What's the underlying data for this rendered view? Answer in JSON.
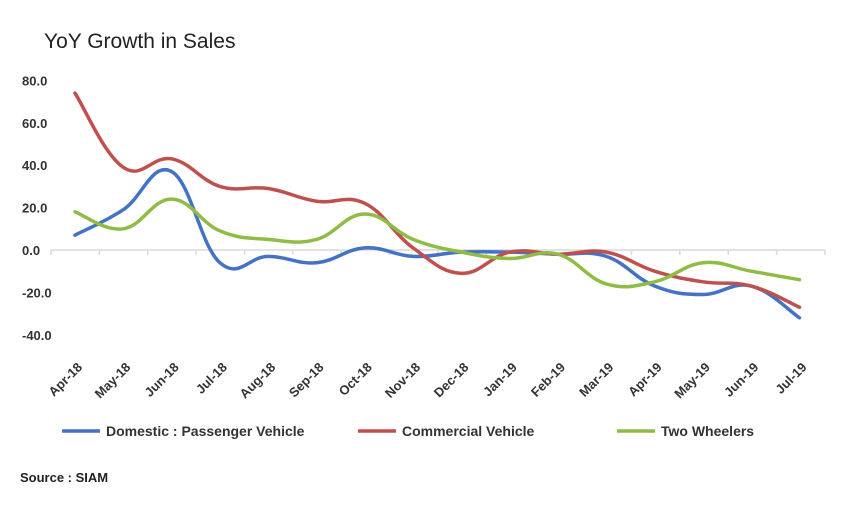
{
  "chart_data": {
    "type": "line",
    "title": "YoY Growth  in Sales",
    "xlabel": "",
    "ylabel": "",
    "categories": [
      "Apr-18",
      "May-18",
      "Jun-18",
      "Jul-18",
      "Aug-18",
      "Sep-18",
      "Oct-18",
      "Nov-18",
      "Dec-18",
      "Jan-19",
      "Feb-19",
      "Mar-19",
      "Apr-19",
      "May-19",
      "Jun-19",
      "Jul-19"
    ],
    "ylim": [
      -40,
      80
    ],
    "yticks": [
      "80.0",
      "60.0",
      "40.0",
      "20.0",
      "0.0",
      "-20.0",
      "-40.0"
    ],
    "grid": false,
    "legend": "bottom",
    "series": [
      {
        "name": "Domestic : Passenger Vehicle",
        "color": "#4472c4",
        "values": [
          7,
          19,
          37,
          -6,
          -3,
          -6,
          1,
          -3,
          -1,
          -1,
          -2,
          -3,
          -17,
          -21,
          -17,
          -32
        ]
      },
      {
        "name": "Commercial Vehicle",
        "color": "#c0504d",
        "values": [
          74,
          39,
          43,
          30,
          29,
          23,
          22,
          1,
          -11,
          -1,
          -2,
          -1,
          -10,
          -15,
          -17,
          -27
        ]
      },
      {
        "name": "Two Wheelers",
        "color": "#8fbc45",
        "values": [
          18,
          10,
          24,
          9,
          5,
          5,
          17,
          5,
          -1,
          -4,
          -2,
          -16,
          -15,
          -6,
          -10,
          -14
        ]
      }
    ]
  },
  "source": "Source : SIAM"
}
